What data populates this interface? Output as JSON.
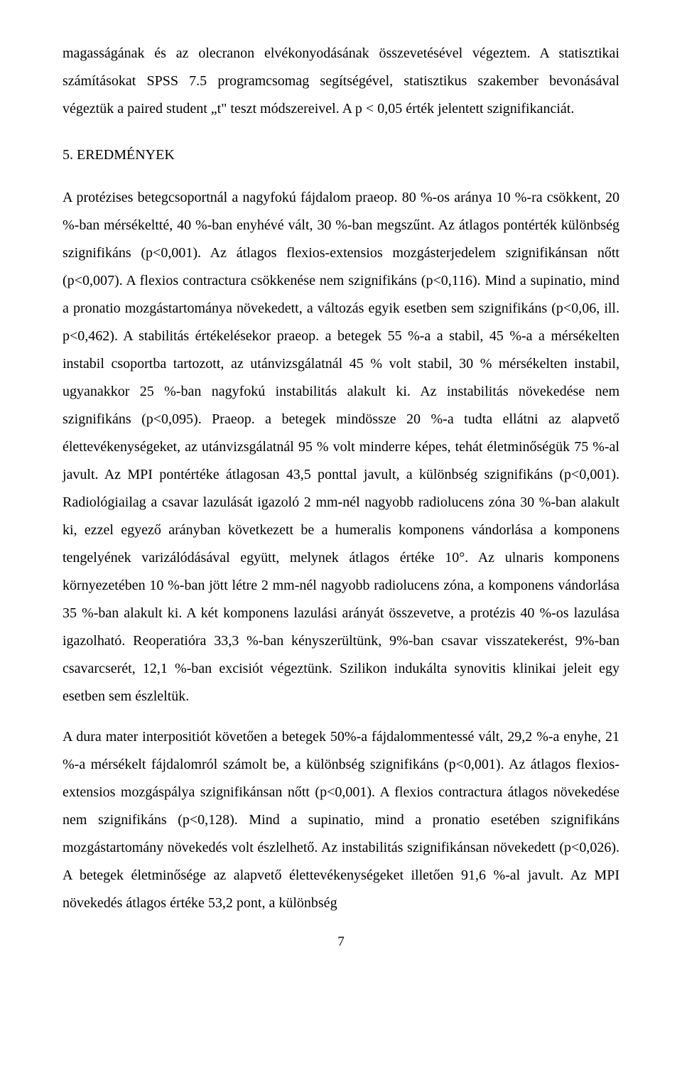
{
  "paragraphs": {
    "p1": "magasságának és az olecranon elvékonyodásának összevetésével végeztem. A statisztikai számításokat SPSS 7.5 programcsomag segítségével, statisztikus szakember bevonásával végeztük a paired student „t\" teszt módszereivel. A p < 0,05 érték jelentett szignifikanciát.",
    "h1": "5. EREDMÉNYEK",
    "p2": "A protézises betegcsoportnál a nagyfokú fájdalom praeop. 80 %-os aránya 10 %-ra csökkent, 20 %-ban mérsékeltté, 40 %-ban enyhévé vált, 30 %-ban megszűnt. Az átlagos pontérték különbség szignifikáns (p<0,001). Az átlagos flexios-extensios mozgásterjedelem szignifikánsan nőtt (p<0,007). A flexios contractura csökkenése nem szignifikáns (p<0,116). Mind a supinatio, mind a pronatio mozgástartománya növekedett, a változás egyik esetben sem szignifikáns (p<0,06, ill. p<0,462). A stabilitás értékelésekor praeop. a betegek 55 %-a a stabil, 45 %-a a mérsékelten instabil csoportba tartozott, az utánvizsgálatnál 45 % volt stabil, 30 % mérsékelten instabil, ugyanakkor 25 %-ban nagyfokú instabilitás alakult ki. Az instabilitás növekedése nem szignifikáns (p<0,095). Praeop. a betegek mindössze 20 %-a tudta ellátni az alapvető élettevékenységeket, az utánvizsgálatnál 95 % volt minderre képes, tehát életminőségük 75 %-al javult. Az MPI pontértéke átlagosan 43,5 ponttal javult, a különbség szignifikáns (p<0,001). Radiológiailag a csavar lazulását igazoló 2 mm-nél nagyobb radiolucens zóna 30 %-ban alakult ki, ezzel egyező arányban következett be a humeralis komponens vándorlása a komponens tengelyének varizálódásával együtt, melynek átlagos értéke 10°. Az ulnaris komponens környezetében 10 %-ban jött létre 2 mm-nél nagyobb radiolucens zóna, a komponens vándorlása 35 %-ban alakult ki. A két komponens lazulási arányát összevetve, a protézis 40 %-os lazulása igazolható. Reoperatióra 33,3 %-ban kényszerültünk, 9%-ban csavar visszatekerést, 9%-ban csavarcserét, 12,1 %-ban excisiót végeztünk. Szilikon indukálta synovitis klinikai jeleit egy esetben sem észleltük.",
    "p3": "A dura mater interpositiót követően a betegek 50%-a fájdalommentessé vált, 29,2 %-a enyhe, 21 %-a mérsékelt fájdalomról számolt be, a különbség szignifikáns (p<0,001). Az átlagos flexios-extensios mozgáspálya szignifikánsan nőtt (p<0,001). A flexios contractura átlagos növekedése nem szignifikáns (p<0,128). Mind a supinatio, mind a pronatio esetében szignifikáns mozgástartomány növekedés volt észlelhető. Az instabilitás szignifikánsan növekedett (p<0,026). A betegek életminősége az alapvető élettevékenységeket illetően 91,6 %-al javult. Az MPI növekedés átlagos értéke 53,2 pont, a különbség"
  },
  "pageNumber": "7"
}
